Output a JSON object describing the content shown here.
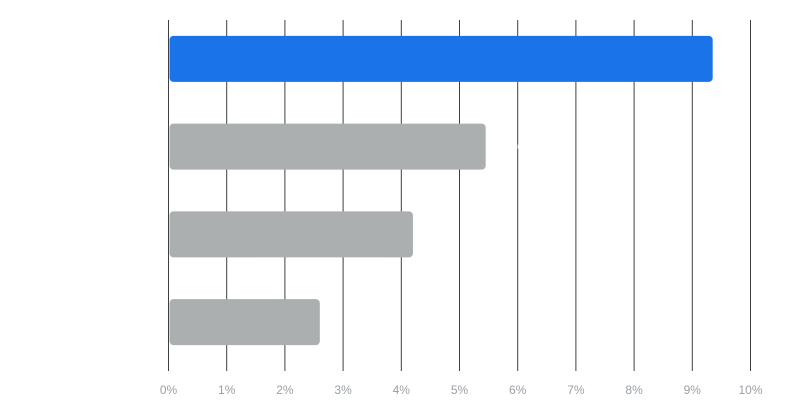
{
  "chart_data": {
    "type": "bar",
    "orientation": "horizontal",
    "categories": [
      "",
      "",
      "",
      ""
    ],
    "values": [
      9.35,
      5.45,
      4.2,
      2.6
    ],
    "xlim": [
      0,
      10
    ],
    "x_ticks": [
      "0%",
      "1%",
      "2%",
      "3%",
      "4%",
      "5%",
      "6%",
      "7%",
      "8%",
      "9%",
      "10%"
    ],
    "grid": true,
    "legend": "none",
    "highlight_index": 0,
    "colors": {
      "highlight": "#1a73e8",
      "default": "#abafaf",
      "grid": "#3c4043",
      "tick_label": "#9aa0a6"
    }
  }
}
